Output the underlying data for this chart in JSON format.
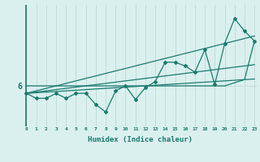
{
  "xlabel": "Humidex (Indice chaleur)",
  "bg_color": "#daf0ee",
  "grid_color": "#c0dedd",
  "line_color": "#1a7a6e",
  "ytick_val": 6.0,
  "ytick_label": "6",
  "x_data": [
    0,
    1,
    2,
    3,
    4,
    5,
    6,
    7,
    8,
    9,
    10,
    11,
    12,
    13,
    14,
    15,
    16,
    17,
    18,
    19,
    20,
    21,
    22,
    23
  ],
  "y_zigzag": [
    5.88,
    5.8,
    5.8,
    5.88,
    5.8,
    5.88,
    5.88,
    5.7,
    5.58,
    5.92,
    6.0,
    5.78,
    5.97,
    6.07,
    6.38,
    6.38,
    6.32,
    6.22,
    6.58,
    6.02,
    6.68,
    7.08,
    6.88,
    6.72
  ],
  "y_line1": [
    5.88,
    5.92,
    5.96,
    6.0,
    6.04,
    6.08,
    6.12,
    6.16,
    6.2,
    6.24,
    6.28,
    6.32,
    6.36,
    6.4,
    6.44,
    6.48,
    6.52,
    6.56,
    6.6,
    6.64,
    6.68,
    6.72,
    6.76,
    6.8
  ],
  "y_line2": [
    5.88,
    5.9,
    5.92,
    5.94,
    5.96,
    5.98,
    6.0,
    6.02,
    6.04,
    6.06,
    6.08,
    6.1,
    6.12,
    6.14,
    6.16,
    6.18,
    6.2,
    6.22,
    6.24,
    6.26,
    6.28,
    6.3,
    6.32,
    6.34
  ],
  "y_line3": [
    5.88,
    5.89,
    5.9,
    5.91,
    5.92,
    5.93,
    5.94,
    5.95,
    5.96,
    5.97,
    5.98,
    5.99,
    6.0,
    6.01,
    6.02,
    6.03,
    6.04,
    6.05,
    6.06,
    6.07,
    6.08,
    6.09,
    6.1,
    6.11
  ],
  "y_flat": [
    6.0,
    6.0,
    6.0,
    6.0,
    6.0,
    6.0,
    6.0,
    6.0,
    6.0,
    6.0,
    6.0,
    6.0,
    6.0,
    6.0,
    6.0,
    6.0,
    6.0,
    6.0,
    6.0,
    6.0,
    6.0,
    6.05,
    6.1,
    6.72
  ],
  "ylim": [
    5.35,
    7.3
  ],
  "xlim": [
    -0.3,
    23.3
  ]
}
